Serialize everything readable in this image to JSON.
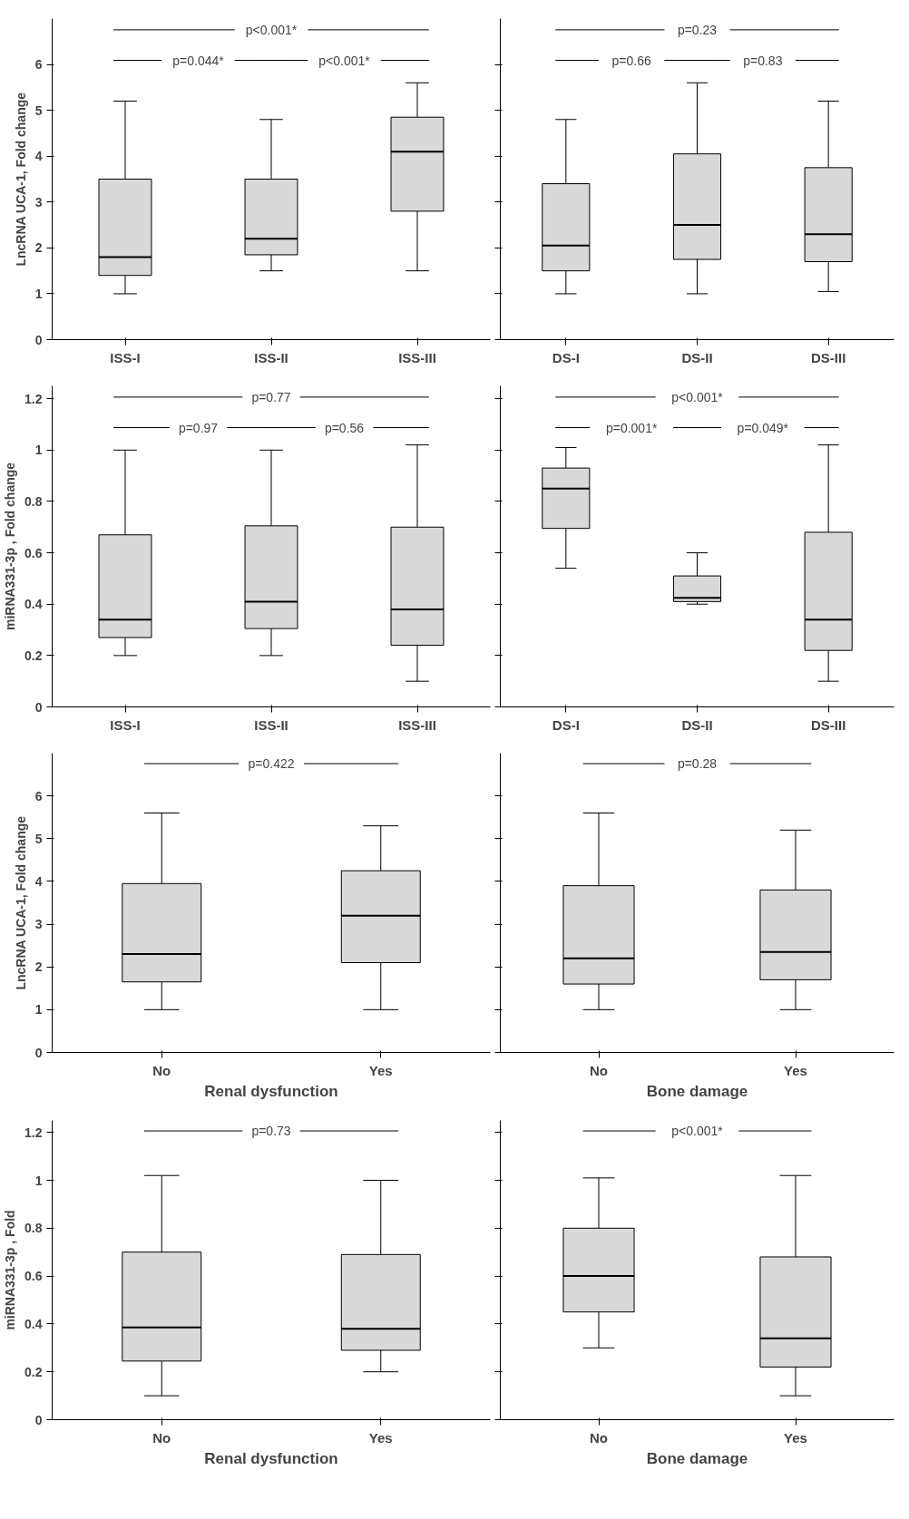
{
  "chart_data": [
    {
      "type": "box",
      "ylabel": "LncRNA UCA-1, Fold change",
      "categories": [
        "ISS-I",
        "ISS-II",
        "ISS-III"
      ],
      "ylim": [
        0,
        7
      ],
      "yticks": [
        0,
        1,
        2,
        3,
        4,
        5,
        6
      ],
      "color": "#d9d9d9",
      "grid": false,
      "boxes": [
        {
          "low": 1.0,
          "q1": 1.4,
          "median": 1.8,
          "q3": 3.5,
          "high": 5.2
        },
        {
          "low": 1.5,
          "q1": 1.85,
          "median": 2.2,
          "q3": 3.5,
          "high": 4.8
        },
        {
          "low": 1.5,
          "q1": 2.8,
          "median": 4.1,
          "q3": 4.85,
          "high": 5.6
        }
      ],
      "annotations": [
        "p<0.001*",
        "p=0.044*",
        "p<0.001*"
      ]
    },
    {
      "type": "box",
      "categories": [
        "DS-I",
        "DS-II",
        "DS-III"
      ],
      "ylim": [
        0,
        7
      ],
      "yticks": [
        {
          "value": 0,
          "label": null
        },
        {
          "value": 1,
          "label": null
        },
        {
          "value": 2,
          "label": null
        },
        {
          "value": 3,
          "label": null
        },
        {
          "value": 4,
          "label": null
        },
        {
          "value": 5,
          "label": null
        },
        {
          "value": 6,
          "label": null
        }
      ],
      "tick_labels": "x",
      "color": "#d9d9d9",
      "grid": false,
      "boxes": [
        {
          "low": 1.0,
          "q1": 1.5,
          "median": 2.05,
          "q3": 3.4,
          "high": 4.8
        },
        {
          "low": 1.0,
          "q1": 1.75,
          "median": 2.5,
          "q3": 4.05,
          "high": 5.6
        },
        {
          "low": 1.05,
          "q1": 1.7,
          "median": 2.3,
          "q3": 3.75,
          "high": 5.2
        }
      ],
      "annotations": [
        "p=0.23",
        "p=0.66",
        "p=0.83"
      ]
    },
    {
      "type": "box",
      "ylabel": "miRNA331-3p , Fold change",
      "categories": [
        "ISS-I",
        "ISS-II",
        "ISS-III"
      ],
      "ylim": [
        0,
        1.25
      ],
      "yticks": [
        0,
        0.2,
        0.4,
        0.6,
        0.8,
        1,
        1.2
      ],
      "color": "#d9d9d9",
      "grid": false,
      "boxes": [
        {
          "low": 0.2,
          "q1": 0.27,
          "median": 0.34,
          "q3": 0.67,
          "high": 1.0
        },
        {
          "low": 0.2,
          "q1": 0.305,
          "median": 0.41,
          "q3": 0.705,
          "high": 1.0
        },
        {
          "low": 0.1,
          "q1": 0.24,
          "median": 0.38,
          "q3": 0.7,
          "high": 1.02
        }
      ],
      "annotations": [
        "p=0.77",
        "p=0.97",
        "p=0.56"
      ]
    },
    {
      "type": "box",
      "categories": [
        "DS-I",
        "DS-II",
        "DS-III"
      ],
      "ylim": [
        0,
        1.25
      ],
      "yticks": [
        {
          "value": 0,
          "label": null
        },
        {
          "value": 0.2,
          "label": null
        },
        {
          "value": 0.4,
          "label": null
        },
        {
          "value": 0.6,
          "label": null
        },
        {
          "value": 0.8,
          "label": null
        },
        {
          "value": 1,
          "label": null
        },
        {
          "value": 1.2,
          "label": null
        }
      ],
      "tick_labels": "x",
      "color": "#d9d9d9",
      "grid": false,
      "boxes": [
        {
          "low": 0.54,
          "q1": 0.695,
          "median": 0.85,
          "q3": 0.93,
          "high": 1.01
        },
        {
          "low": 0.4,
          "q1": 0.41,
          "median": 0.425,
          "q3": 0.51,
          "high": 0.6
        },
        {
          "low": 0.1,
          "q1": 0.22,
          "median": 0.34,
          "q3": 0.68,
          "high": 1.02
        }
      ],
      "annotations": [
        "p<0.001*",
        "p=0.001*",
        "p=0.049*"
      ]
    },
    {
      "type": "box",
      "ylabel": "LncRNA UCA-1, Fold change",
      "xlabel": "Renal dysfunction",
      "categories": [
        "No",
        "Yes"
      ],
      "ylim": [
        0,
        7
      ],
      "yticks": [
        0,
        1,
        2,
        3,
        4,
        5,
        6
      ],
      "color": "#d9d9d9",
      "grid": false,
      "boxes": [
        {
          "low": 1.0,
          "q1": 1.65,
          "median": 2.3,
          "q3": 3.95,
          "high": 5.6
        },
        {
          "low": 1.0,
          "q1": 2.1,
          "median": 3.2,
          "q3": 4.25,
          "high": 5.3
        }
      ],
      "annotations": [
        "p=0.422"
      ]
    },
    {
      "type": "box",
      "xlabel": "Bone damage",
      "categories": [
        "No",
        "Yes"
      ],
      "ylim": [
        0,
        7
      ],
      "yticks": [
        {
          "value": 0,
          "label": null
        },
        {
          "value": 1,
          "label": null
        },
        {
          "value": 2,
          "label": null
        },
        {
          "value": 3,
          "label": null
        },
        {
          "value": 4,
          "label": null
        },
        {
          "value": 5,
          "label": null
        },
        {
          "value": 6,
          "label": null
        }
      ],
      "tick_labels": "x",
      "color": "#d9d9d9",
      "grid": false,
      "boxes": [
        {
          "low": 1.0,
          "q1": 1.6,
          "median": 2.2,
          "q3": 3.9,
          "high": 5.6
        },
        {
          "low": 1.0,
          "q1": 1.7,
          "median": 2.35,
          "q3": 3.8,
          "high": 5.2
        }
      ],
      "annotations": [
        "p=0.28"
      ]
    },
    {
      "type": "box",
      "ylabel": "miRNA331-3p , Fold",
      "xlabel": "Renal dysfunction",
      "categories": [
        "No",
        "Yes"
      ],
      "ylim": [
        0,
        1.25
      ],
      "yticks": [
        0,
        0.2,
        0.4,
        0.6,
        0.8,
        1,
        1.2
      ],
      "color": "#d9d9d9",
      "grid": false,
      "boxes": [
        {
          "low": 0.1,
          "q1": 0.245,
          "median": 0.385,
          "q3": 0.7,
          "high": 1.02
        },
        {
          "low": 0.2,
          "q1": 0.29,
          "median": 0.38,
          "q3": 0.69,
          "high": 1.0
        }
      ],
      "annotations": [
        "p=0.73"
      ]
    },
    {
      "type": "box",
      "xlabel": "Bone damage",
      "categories": [
        "No",
        "Yes"
      ],
      "ylim": [
        0,
        1.25
      ],
      "yticks": [
        {
          "value": 0,
          "label": null
        },
        {
          "value": 0.2,
          "label": null
        },
        {
          "value": 0.4,
          "label": null
        },
        {
          "value": 0.6,
          "label": null
        },
        {
          "value": 0.8,
          "label": null
        },
        {
          "value": 1,
          "label": null
        },
        {
          "value": 1.2,
          "label": null
        }
      ],
      "tick_labels": "x",
      "color": "#d9d9d9",
      "grid": false,
      "boxes": [
        {
          "low": 0.3,
          "q1": 0.45,
          "median": 0.6,
          "q3": 0.8,
          "high": 1.01
        },
        {
          "low": 0.1,
          "q1": 0.22,
          "median": 0.34,
          "q3": 0.68,
          "high": 1.02
        }
      ],
      "annotations": [
        "p<0.001*"
      ]
    }
  ]
}
